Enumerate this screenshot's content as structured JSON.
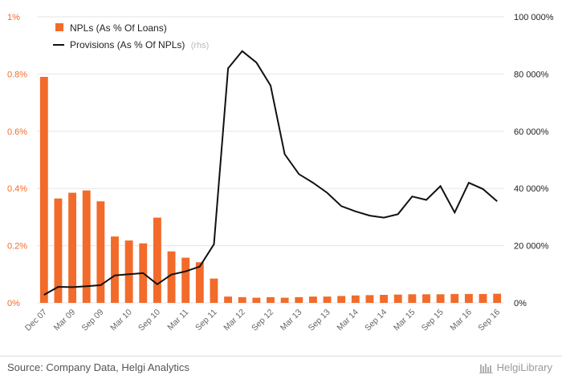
{
  "chart_data": {
    "type": "bar+line",
    "categories": [
      "Dec 07",
      "",
      "Mar 09",
      "",
      "Sep 09",
      "",
      "Mar 10",
      "",
      "Sep 10",
      "",
      "Mar 11",
      "",
      "Sep 11",
      "",
      "Mar 12",
      "",
      "Sep 12",
      "",
      "Mar 13",
      "",
      "Sep 13",
      "",
      "Mar 14",
      "",
      "Sep 14",
      "",
      "Mar 15",
      "",
      "Sep 15",
      "",
      "Mar 16",
      "",
      "Sep 16"
    ],
    "series": [
      {
        "name": "NPLs (As % Of Loans)",
        "type": "bar",
        "axis": "left",
        "color": "#f26b2a",
        "values": [
          0.79,
          0.365,
          0.385,
          0.393,
          0.355,
          0.232,
          0.218,
          0.208,
          0.298,
          0.18,
          0.158,
          0.142,
          0.085,
          0.022,
          0.02,
          0.018,
          0.02,
          0.018,
          0.02,
          0.022,
          0.022,
          0.024,
          0.026,
          0.027,
          0.028,
          0.029,
          0.03,
          0.03,
          0.03,
          0.031,
          0.031,
          0.031,
          0.032
        ]
      },
      {
        "name": "Provisions (As % Of NPLs)",
        "type": "line",
        "axis": "right",
        "color": "#111111",
        "values": [
          2.8,
          5.6,
          5.5,
          5.8,
          6.2,
          9.6,
          10,
          10.4,
          6.5,
          9.9,
          11,
          12.7,
          20.5,
          82,
          88,
          84,
          76,
          52,
          45,
          42,
          38.5,
          33.8,
          32,
          30.5,
          29.8,
          31,
          37.2,
          36,
          40.8,
          31.6,
          42,
          39.8,
          35.5
        ]
      }
    ],
    "legend_note": "(rhs)",
    "y_left": {
      "min": 0,
      "max": 1,
      "ticks": [
        "0%",
        "0.2%",
        "0.4%",
        "0.6%",
        "0.8%",
        "1%"
      ]
    },
    "y_right": {
      "min": 0,
      "max": 100,
      "ticks": [
        "0%",
        "20 000%",
        "40 000%",
        "60 000%",
        "80 000%",
        "100 000%"
      ]
    },
    "grid": true,
    "legend_position": "top-left"
  },
  "footer": {
    "source": "Source: Company Data, Helgi Analytics",
    "logo": "HelgiLibrary"
  }
}
